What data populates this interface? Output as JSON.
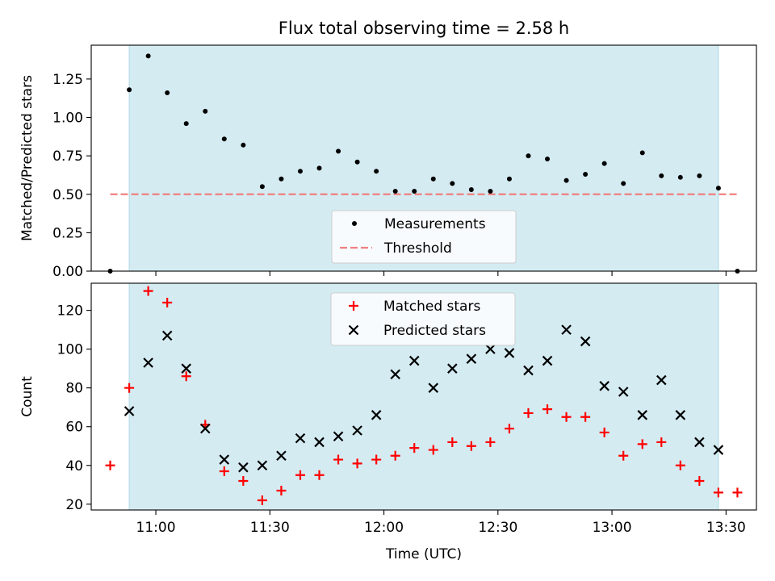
{
  "chart_data": [
    {
      "type": "scatter",
      "title": "Flux total observing time = 2.58 h",
      "xlabel": "",
      "ylabel": "Matched/Predicted stars",
      "ylim": [
        0,
        1.47
      ],
      "yticks": [
        "0.00",
        "0.25",
        "0.50",
        "0.75",
        "1.00",
        "1.25"
      ],
      "yticks_values": [
        0,
        0.25,
        0.5,
        0.75,
        1.0,
        1.25
      ],
      "xlim": [
        "10:43",
        "13:38"
      ],
      "grid": false,
      "legend": "bottom-center",
      "observing_window": [
        "10:53",
        "13:28"
      ],
      "threshold": {
        "name": "Threshold",
        "y": 0.5,
        "x_start": "10:48",
        "x_end": "13:33",
        "color": "#f08080"
      },
      "series": [
        {
          "name": "Measurements",
          "color": "#000000",
          "marker": "dot",
          "x": [
            "10:48",
            "10:53",
            "10:58",
            "11:03",
            "11:08",
            "11:13",
            "11:18",
            "11:23",
            "11:28",
            "11:33",
            "11:38",
            "11:43",
            "11:48",
            "11:53",
            "11:58",
            "12:03",
            "12:08",
            "12:13",
            "12:18",
            "12:23",
            "12:28",
            "12:33",
            "12:38",
            "12:43",
            "12:48",
            "12:53",
            "12:58",
            "13:03",
            "13:08",
            "13:13",
            "13:18",
            "13:23",
            "13:28",
            "13:33"
          ],
          "y": [
            0.0,
            1.18,
            1.4,
            1.16,
            0.96,
            1.04,
            0.86,
            0.82,
            0.55,
            0.6,
            0.65,
            0.67,
            0.78,
            0.71,
            0.65,
            0.52,
            0.52,
            0.6,
            0.57,
            0.53,
            0.52,
            0.6,
            0.75,
            0.73,
            0.59,
            0.63,
            0.7,
            0.57,
            0.77,
            0.62,
            0.61,
            0.62,
            0.54,
            0.0
          ]
        }
      ]
    },
    {
      "type": "scatter",
      "title": "",
      "xlabel": "Time (UTC)",
      "ylabel": "Count",
      "ylim": [
        17,
        134
      ],
      "yticks": [
        "20",
        "40",
        "60",
        "80",
        "100",
        "120"
      ],
      "yticks_values": [
        20,
        40,
        60,
        80,
        100,
        120
      ],
      "xlim": [
        "10:43",
        "13:38"
      ],
      "xticks": [
        "11:00",
        "11:30",
        "12:00",
        "12:30",
        "13:00",
        "13:30"
      ],
      "grid": false,
      "legend": "top-center",
      "observing_window": [
        "10:53",
        "13:28"
      ],
      "series": [
        {
          "name": "Matched stars",
          "color": "#ff0000",
          "marker": "plus",
          "x": [
            "10:48",
            "10:53",
            "10:58",
            "11:03",
            "11:08",
            "11:13",
            "11:18",
            "11:23",
            "11:28",
            "11:33",
            "11:38",
            "11:43",
            "11:48",
            "11:53",
            "11:58",
            "12:03",
            "12:08",
            "12:13",
            "12:18",
            "12:23",
            "12:28",
            "12:33",
            "12:38",
            "12:43",
            "12:48",
            "12:53",
            "12:58",
            "13:03",
            "13:08",
            "13:13",
            "13:18",
            "13:23",
            "13:28",
            "13:33"
          ],
          "y": [
            40,
            80,
            130,
            124,
            86,
            61,
            37,
            32,
            22,
            27,
            35,
            35,
            43,
            41,
            43,
            45,
            49,
            48,
            52,
            50,
            52,
            59,
            67,
            69,
            65,
            65,
            57,
            45,
            51,
            52,
            40,
            32,
            26,
            26
          ]
        },
        {
          "name": "Predicted stars",
          "color": "#000000",
          "marker": "x",
          "x": [
            "10:53",
            "10:58",
            "11:03",
            "11:08",
            "11:13",
            "11:18",
            "11:23",
            "11:28",
            "11:33",
            "11:38",
            "11:43",
            "11:48",
            "11:53",
            "11:58",
            "12:03",
            "12:08",
            "12:13",
            "12:18",
            "12:23",
            "12:28",
            "12:33",
            "12:38",
            "12:43",
            "12:48",
            "12:53",
            "12:58",
            "13:03",
            "13:08",
            "13:13",
            "13:18",
            "13:23",
            "13:28"
          ],
          "y": [
            68,
            93,
            107,
            90,
            59,
            43,
            39,
            40,
            45,
            54,
            52,
            55,
            58,
            66,
            87,
            94,
            80,
            90,
            95,
            100,
            98,
            89,
            94,
            110,
            104,
            81,
            78,
            66,
            84,
            66,
            52,
            48
          ]
        }
      ]
    }
  ],
  "colors": {
    "observing_window": "#add8e6",
    "legend_border": "#cccccc"
  }
}
